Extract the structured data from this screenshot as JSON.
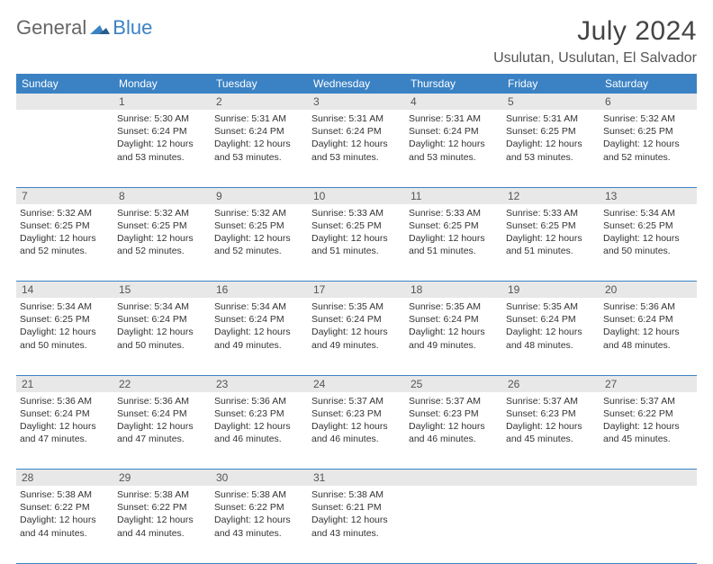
{
  "logo": {
    "text1": "General",
    "text2": "Blue"
  },
  "title": "July 2024",
  "location": "Usulutan, Usulutan, El Salvador",
  "colors": {
    "header_bg": "#3b82c4",
    "header_text": "#ffffff",
    "daynum_bg": "#e8e8e8",
    "cell_border": "#3b82c4",
    "body_text": "#333333",
    "title_text": "#444444"
  },
  "weekdays": [
    "Sunday",
    "Monday",
    "Tuesday",
    "Wednesday",
    "Thursday",
    "Friday",
    "Saturday"
  ],
  "weeks": [
    {
      "nums": [
        "",
        "1",
        "2",
        "3",
        "4",
        "5",
        "6"
      ],
      "cells": [
        "",
        "Sunrise: 5:30 AM\nSunset: 6:24 PM\nDaylight: 12 hours and 53 minutes.",
        "Sunrise: 5:31 AM\nSunset: 6:24 PM\nDaylight: 12 hours and 53 minutes.",
        "Sunrise: 5:31 AM\nSunset: 6:24 PM\nDaylight: 12 hours and 53 minutes.",
        "Sunrise: 5:31 AM\nSunset: 6:24 PM\nDaylight: 12 hours and 53 minutes.",
        "Sunrise: 5:31 AM\nSunset: 6:25 PM\nDaylight: 12 hours and 53 minutes.",
        "Sunrise: 5:32 AM\nSunset: 6:25 PM\nDaylight: 12 hours and 52 minutes."
      ]
    },
    {
      "nums": [
        "7",
        "8",
        "9",
        "10",
        "11",
        "12",
        "13"
      ],
      "cells": [
        "Sunrise: 5:32 AM\nSunset: 6:25 PM\nDaylight: 12 hours and 52 minutes.",
        "Sunrise: 5:32 AM\nSunset: 6:25 PM\nDaylight: 12 hours and 52 minutes.",
        "Sunrise: 5:32 AM\nSunset: 6:25 PM\nDaylight: 12 hours and 52 minutes.",
        "Sunrise: 5:33 AM\nSunset: 6:25 PM\nDaylight: 12 hours and 51 minutes.",
        "Sunrise: 5:33 AM\nSunset: 6:25 PM\nDaylight: 12 hours and 51 minutes.",
        "Sunrise: 5:33 AM\nSunset: 6:25 PM\nDaylight: 12 hours and 51 minutes.",
        "Sunrise: 5:34 AM\nSunset: 6:25 PM\nDaylight: 12 hours and 50 minutes."
      ]
    },
    {
      "nums": [
        "14",
        "15",
        "16",
        "17",
        "18",
        "19",
        "20"
      ],
      "cells": [
        "Sunrise: 5:34 AM\nSunset: 6:25 PM\nDaylight: 12 hours and 50 minutes.",
        "Sunrise: 5:34 AM\nSunset: 6:24 PM\nDaylight: 12 hours and 50 minutes.",
        "Sunrise: 5:34 AM\nSunset: 6:24 PM\nDaylight: 12 hours and 49 minutes.",
        "Sunrise: 5:35 AM\nSunset: 6:24 PM\nDaylight: 12 hours and 49 minutes.",
        "Sunrise: 5:35 AM\nSunset: 6:24 PM\nDaylight: 12 hours and 49 minutes.",
        "Sunrise: 5:35 AM\nSunset: 6:24 PM\nDaylight: 12 hours and 48 minutes.",
        "Sunrise: 5:36 AM\nSunset: 6:24 PM\nDaylight: 12 hours and 48 minutes."
      ]
    },
    {
      "nums": [
        "21",
        "22",
        "23",
        "24",
        "25",
        "26",
        "27"
      ],
      "cells": [
        "Sunrise: 5:36 AM\nSunset: 6:24 PM\nDaylight: 12 hours and 47 minutes.",
        "Sunrise: 5:36 AM\nSunset: 6:24 PM\nDaylight: 12 hours and 47 minutes.",
        "Sunrise: 5:36 AM\nSunset: 6:23 PM\nDaylight: 12 hours and 46 minutes.",
        "Sunrise: 5:37 AM\nSunset: 6:23 PM\nDaylight: 12 hours and 46 minutes.",
        "Sunrise: 5:37 AM\nSunset: 6:23 PM\nDaylight: 12 hours and 46 minutes.",
        "Sunrise: 5:37 AM\nSunset: 6:23 PM\nDaylight: 12 hours and 45 minutes.",
        "Sunrise: 5:37 AM\nSunset: 6:22 PM\nDaylight: 12 hours and 45 minutes."
      ]
    },
    {
      "nums": [
        "28",
        "29",
        "30",
        "31",
        "",
        "",
        ""
      ],
      "cells": [
        "Sunrise: 5:38 AM\nSunset: 6:22 PM\nDaylight: 12 hours and 44 minutes.",
        "Sunrise: 5:38 AM\nSunset: 6:22 PM\nDaylight: 12 hours and 44 minutes.",
        "Sunrise: 5:38 AM\nSunset: 6:22 PM\nDaylight: 12 hours and 43 minutes.",
        "Sunrise: 5:38 AM\nSunset: 6:21 PM\nDaylight: 12 hours and 43 minutes.",
        "",
        "",
        ""
      ]
    }
  ]
}
